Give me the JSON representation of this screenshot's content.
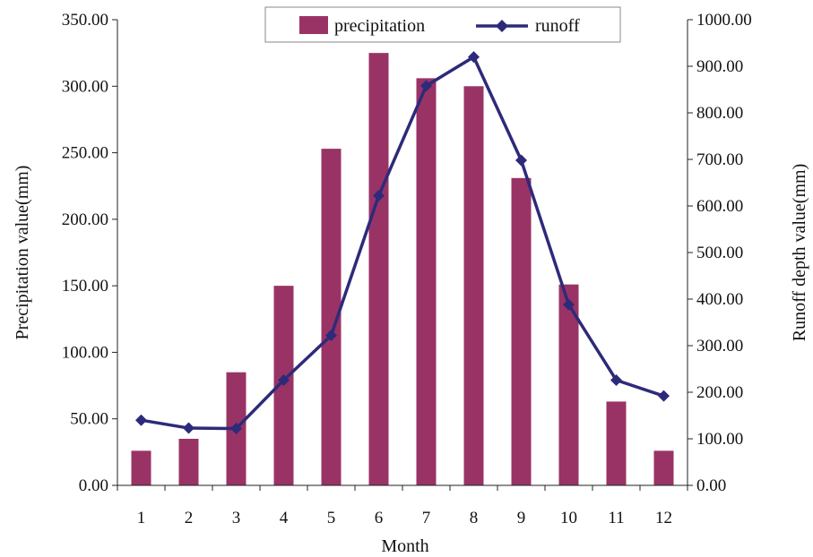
{
  "chart_data": {
    "type": "bar",
    "title": "",
    "xlabel": "Month",
    "ylabel": "Precipitation value(mm)",
    "y2label": "Runoff depth value(mm)",
    "categories": [
      "1",
      "2",
      "3",
      "4",
      "5",
      "6",
      "7",
      "8",
      "9",
      "10",
      "11",
      "12"
    ],
    "ylim": [
      0,
      350
    ],
    "y2lim": [
      0,
      1000
    ],
    "yticks": [
      "0.00",
      "50.00",
      "100.00",
      "150.00",
      "200.00",
      "250.00",
      "300.00",
      "350.00"
    ],
    "y2ticks": [
      "0.00",
      "100.00",
      "200.00",
      "300.00",
      "400.00",
      "500.00",
      "600.00",
      "700.00",
      "800.00",
      "900.00",
      "1000.00"
    ],
    "grid": false,
    "legend": {
      "placement": "top-center",
      "entries": [
        "precipitation",
        "runoff"
      ]
    },
    "series": [
      {
        "name": "precipitation",
        "type": "bar",
        "axis": "left",
        "color": "#993366",
        "values": [
          26,
          35,
          85,
          150,
          253,
          325,
          306,
          300,
          231,
          151,
          63,
          26
        ]
      },
      {
        "name": "runoff",
        "type": "line",
        "axis": "right",
        "marker": "diamond",
        "color": "#2E2A7A",
        "values": [
          140,
          123,
          122,
          226,
          322,
          622,
          858,
          920,
          698,
          388,
          226,
          192
        ]
      }
    ]
  }
}
